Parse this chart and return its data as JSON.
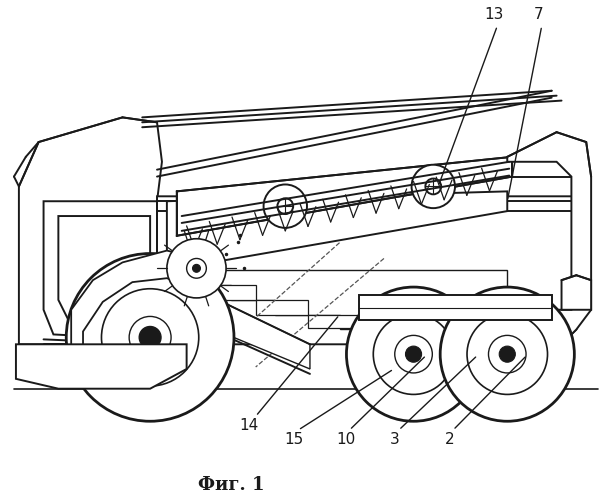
{
  "caption": "Фиг. 1",
  "bg_color": "#ffffff",
  "line_color": "#1a1a1a",
  "lw": 1.4,
  "label_fontsize": 11
}
